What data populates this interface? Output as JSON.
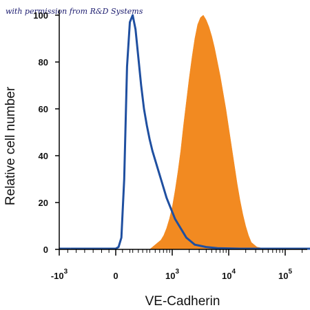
{
  "watermark": "with permission from R&D Systems",
  "chart_data": {
    "type": "area",
    "xlabel": "VE-Cadherin",
    "ylabel": "Relative cell number",
    "ylim": [
      0,
      100
    ],
    "yticks": [
      "0",
      "20",
      "40",
      "60",
      "80",
      "100"
    ],
    "xticks": [
      {
        "base": "-10",
        "exp": "3"
      },
      {
        "base": "0",
        "exp": ""
      },
      {
        "base": "10",
        "exp": "3"
      },
      {
        "base": "10",
        "exp": "4"
      },
      {
        "base": "10",
        "exp": "5"
      }
    ],
    "series": [
      {
        "color": "#f28a21",
        "fill": true,
        "x": [
          0.6,
          0.65,
          0.7,
          0.75,
          0.8,
          0.85,
          0.9,
          0.95,
          1.0,
          1.05,
          1.1,
          1.15,
          1.2,
          1.25,
          1.3,
          1.35,
          1.4,
          1.45,
          1.5,
          1.55,
          1.6,
          1.65,
          1.7,
          1.75,
          1.8,
          1.85,
          1.9,
          1.95,
          2.0,
          2.05,
          2.1,
          2.15,
          2.2,
          2.25,
          2.3,
          2.35,
          2.4,
          2.45,
          2.5,
          2.6,
          2.7,
          2.8
        ],
        "y": [
          0,
          1,
          2,
          3,
          4,
          6,
          9,
          13,
          18,
          25,
          33,
          42,
          53,
          63,
          73,
          82,
          90,
          96,
          99,
          100,
          98,
          95,
          91,
          86,
          80,
          74,
          67,
          60,
          52,
          44,
          36,
          28,
          21,
          15,
          10,
          6,
          3,
          2,
          1,
          0.5,
          0.2,
          0
        ]
      },
      {
        "color": "#1f4fa0",
        "fill": false,
        "x": [
          -0.8,
          0.0,
          0.05,
          0.1,
          0.15,
          0.2,
          0.25,
          0.3,
          0.35,
          0.4,
          0.45,
          0.5,
          0.55,
          0.6,
          0.65,
          0.7,
          0.75,
          0.8,
          0.85,
          0.9,
          0.95,
          1.0,
          1.05,
          1.1,
          1.15,
          1.2,
          1.25,
          1.3,
          1.4,
          1.5,
          1.6,
          1.8,
          2.2,
          3.0,
          3.7
        ],
        "y": [
          0,
          0,
          1,
          5,
          30,
          78,
          97,
          100,
          94,
          82,
          70,
          60,
          53,
          47,
          42,
          38,
          34,
          30,
          26,
          22,
          19,
          16,
          13,
          11,
          9,
          7,
          5,
          4,
          2,
          1.5,
          1,
          0.5,
          0.2,
          0,
          0
        ]
      }
    ]
  }
}
